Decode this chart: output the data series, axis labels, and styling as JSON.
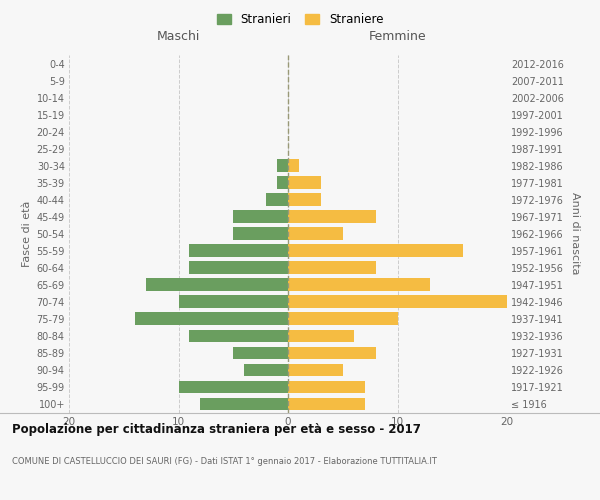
{
  "age_groups": [
    "0-4",
    "5-9",
    "10-14",
    "15-19",
    "20-24",
    "25-29",
    "30-34",
    "35-39",
    "40-44",
    "45-49",
    "50-54",
    "55-59",
    "60-64",
    "65-69",
    "70-74",
    "75-79",
    "80-84",
    "85-89",
    "90-94",
    "95-99",
    "100+"
  ],
  "birth_years": [
    "2012-2016",
    "2007-2011",
    "2002-2006",
    "1997-2001",
    "1992-1996",
    "1987-1991",
    "1982-1986",
    "1977-1981",
    "1972-1976",
    "1967-1971",
    "1962-1966",
    "1957-1961",
    "1952-1956",
    "1947-1951",
    "1942-1946",
    "1937-1941",
    "1932-1936",
    "1927-1931",
    "1922-1926",
    "1917-1921",
    "≤ 1916"
  ],
  "maschi": [
    8,
    10,
    4,
    5,
    9,
    14,
    10,
    13,
    9,
    9,
    5,
    5,
    2,
    1,
    1,
    0,
    0,
    0,
    0,
    0,
    0
  ],
  "femmine": [
    7,
    7,
    5,
    8,
    6,
    10,
    20,
    13,
    8,
    16,
    5,
    8,
    3,
    3,
    1,
    0,
    0,
    0,
    0,
    0,
    0
  ],
  "color_maschi": "#6a9e5f",
  "color_femmine": "#f5bc42",
  "title": "Popolazione per cittadinanza straniera per età e sesso - 2017",
  "subtitle": "COMUNE DI CASTELLUCCIO DEI SAURI (FG) - Dati ISTAT 1° gennaio 2017 - Elaborazione TUTTITALIA.IT",
  "xlabel_maschi": "Maschi",
  "xlabel_femmine": "Femmine",
  "ylabel_left": "Fasce di età",
  "ylabel_right": "Anni di nascita",
  "legend_maschi": "Stranieri",
  "legend_femmine": "Straniere",
  "xlim": 20,
  "background_color": "#f7f7f7",
  "grid_color": "#cccccc"
}
